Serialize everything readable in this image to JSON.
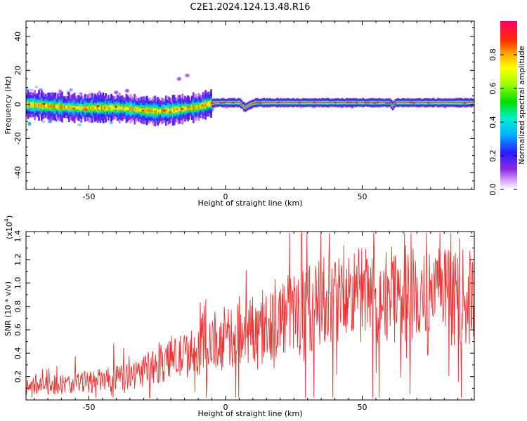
{
  "title": "C2E1.2024.124.13.48.R16",
  "chart_data": [
    {
      "type": "heatmap",
      "xlabel": "Height of straight line (km)",
      "ylabel": "Frequency (Hz)",
      "xlim": [
        -73,
        91
      ],
      "ylim": [
        -50,
        49
      ],
      "xticks": [
        -50,
        0,
        50
      ],
      "yticks": [
        -40,
        -20,
        0,
        20,
        40
      ],
      "ridge": [
        [
          -73,
          0
        ],
        [
          -65,
          -1
        ],
        [
          -55,
          -2
        ],
        [
          -48,
          -2
        ],
        [
          -40,
          -2
        ],
        [
          -35,
          -2.5
        ],
        [
          -30,
          -3.5
        ],
        [
          -25,
          -4
        ],
        [
          -20,
          -3.5
        ],
        [
          -15,
          -2.5
        ],
        [
          -10,
          -1.5
        ],
        [
          -7,
          0
        ],
        [
          -4,
          1
        ],
        [
          5,
          1
        ],
        [
          7,
          -2
        ],
        [
          9,
          0
        ],
        [
          11,
          1
        ],
        [
          60,
          1
        ],
        [
          61,
          -1
        ],
        [
          62,
          1
        ],
        [
          91,
          1
        ]
      ],
      "colorbar": {
        "label": "Normalized spectral amplitude",
        "range": [
          0,
          1
        ],
        "ticks": [
          "0.0",
          "0.2",
          "0.4",
          "0.6",
          "0.8"
        ]
      }
    },
    {
      "type": "line",
      "xlabel": "Height of straight line (km)",
      "ylabel": "SNR (10 * v/v)",
      "multiplier_label": "(x10",
      "multiplier_exp": "4",
      "multiplier_close": ")",
      "xlim": [
        -73,
        91
      ],
      "ylim": [
        0.0,
        1.44
      ],
      "xticks": [
        -50,
        0,
        50
      ],
      "yticks": [
        "0.2",
        "0.4",
        "0.6",
        "0.8",
        "1.0",
        "1.2",
        "1.4"
      ],
      "series": [
        {
          "color": "#ee3333",
          "trend": [
            [
              -73,
              0.12
            ],
            [
              -60,
              0.13
            ],
            [
              -45,
              0.17
            ],
            [
              -35,
              0.2
            ],
            [
              -25,
              0.3
            ],
            [
              -15,
              0.38
            ],
            [
              -5,
              0.46
            ],
            [
              5,
              0.56
            ],
            [
              15,
              0.65
            ],
            [
              25,
              0.75
            ],
            [
              35,
              0.82
            ],
            [
              45,
              0.87
            ],
            [
              55,
              0.9
            ],
            [
              65,
              0.9
            ],
            [
              75,
              0.9
            ],
            [
              85,
              0.88
            ],
            [
              91,
              0.86
            ]
          ]
        }
      ]
    }
  ]
}
